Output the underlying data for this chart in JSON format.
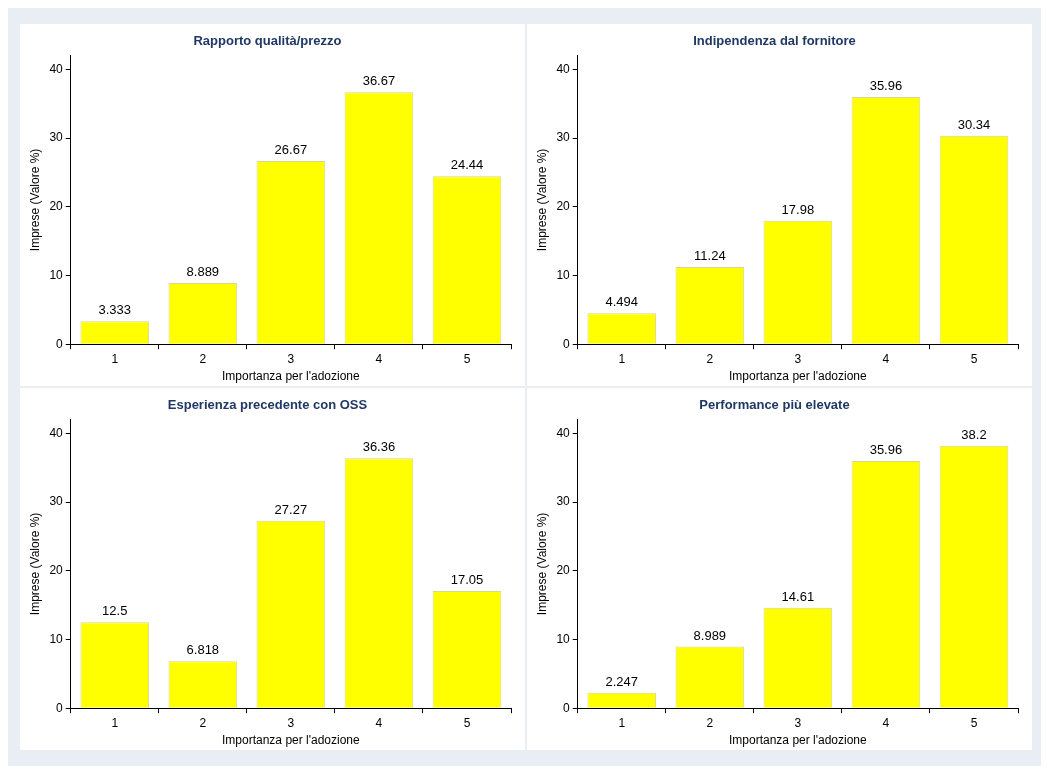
{
  "chart_data": [
    {
      "type": "bar",
      "title": "Rapporto qualità/prezzo",
      "xlabel": "Importanza per l'adozione",
      "ylabel": "Imprese (Valore %)",
      "categories": [
        "1",
        "2",
        "3",
        "4",
        "5"
      ],
      "values": [
        3.333,
        8.889,
        26.67,
        36.67,
        24.44
      ],
      "color": "#ffff00",
      "ylim": [
        0,
        42
      ],
      "yticks": [
        0,
        10,
        20,
        30,
        40
      ],
      "data_labels": true
    },
    {
      "type": "bar",
      "title": "Indipendenza dal fornitore",
      "xlabel": "Importanza per l'adozione",
      "ylabel": "Imprese (Valore %)",
      "categories": [
        "1",
        "2",
        "3",
        "4",
        "5"
      ],
      "values": [
        4.494,
        11.24,
        17.98,
        35.96,
        30.34
      ],
      "color": "#ffff00",
      "ylim": [
        0,
        42
      ],
      "yticks": [
        0,
        10,
        20,
        30,
        40
      ],
      "data_labels": true
    },
    {
      "type": "bar",
      "title": "Esperienza precedente con OSS",
      "xlabel": "Importanza per l'adozione",
      "ylabel": "Imprese (Valore %)",
      "categories": [
        "1",
        "2",
        "3",
        "4",
        "5"
      ],
      "values": [
        12.5,
        6.818,
        27.27,
        36.36,
        17.05
      ],
      "color": "#ffff00",
      "ylim": [
        0,
        42
      ],
      "yticks": [
        0,
        10,
        20,
        30,
        40
      ],
      "data_labels": true
    },
    {
      "type": "bar",
      "title": "Performance più elevate",
      "xlabel": "Importanza per l'adozione",
      "ylabel": "Imprese (Valore %)",
      "categories": [
        "1",
        "2",
        "3",
        "4",
        "5"
      ],
      "values": [
        2.247,
        8.989,
        14.61,
        35.96,
        38.2
      ],
      "color": "#ffff00",
      "ylim": [
        0,
        42
      ],
      "yticks": [
        0,
        10,
        20,
        30,
        40
      ],
      "data_labels": true
    }
  ]
}
